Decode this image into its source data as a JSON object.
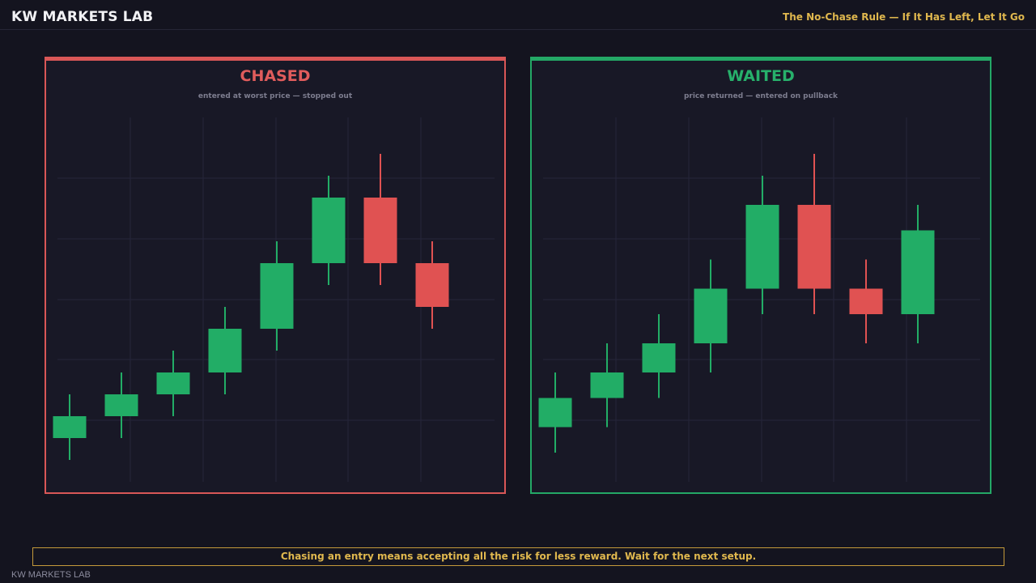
{
  "header": {
    "brand": "KW MARKETS LAB",
    "topic": "The No-Chase Rule — If It Has Left, Let It Go"
  },
  "colors": {
    "bull": "#22ad66",
    "bear": "#e05252",
    "grid": "#26263a",
    "chased_accent": "#d95757",
    "waited_accent": "#24a866",
    "gold": "#e0b84e"
  },
  "chart_data": [
    {
      "type": "candlestick",
      "title": "CHASED",
      "subtitle": "entered at worst price — stopped out",
      "xlabel": "",
      "ylabel": "",
      "ylim": [
        0,
        100
      ],
      "grid": true,
      "candles": [
        {
          "open": 12,
          "close": 18,
          "low": 6,
          "high": 24
        },
        {
          "open": 18,
          "close": 24,
          "low": 12,
          "high": 30
        },
        {
          "open": 24,
          "close": 30,
          "low": 18,
          "high": 36
        },
        {
          "open": 30,
          "close": 42,
          "low": 24,
          "high": 48
        },
        {
          "open": 42,
          "close": 60,
          "low": 36,
          "high": 66
        },
        {
          "open": 60,
          "close": 78,
          "low": 54,
          "high": 84
        },
        {
          "open": 78,
          "close": 60,
          "low": 54,
          "high": 90
        },
        {
          "open": 60,
          "close": 48,
          "low": 42,
          "high": 66
        }
      ]
    },
    {
      "type": "candlestick",
      "title": "WAITED",
      "subtitle": "price returned — entered on pullback",
      "xlabel": "",
      "ylabel": "",
      "ylim": [
        0,
        100
      ],
      "grid": true,
      "candles": [
        {
          "open": 15,
          "close": 23,
          "low": 8,
          "high": 30
        },
        {
          "open": 23,
          "close": 30,
          "low": 15,
          "high": 38
        },
        {
          "open": 30,
          "close": 38,
          "low": 23,
          "high": 46
        },
        {
          "open": 38,
          "close": 53,
          "low": 30,
          "high": 61
        },
        {
          "open": 53,
          "close": 76,
          "low": 46,
          "high": 84
        },
        {
          "open": 76,
          "close": 53,
          "low": 46,
          "high": 90
        },
        {
          "open": 53,
          "close": 46,
          "low": 38,
          "high": 61
        },
        {
          "open": 46,
          "close": 69,
          "low": 38,
          "high": 76
        }
      ]
    }
  ],
  "footer": {
    "message": "Chasing an entry means accepting all the risk for less reward. Wait for the next setup.",
    "watermark": "KW MARKETS LAB"
  }
}
